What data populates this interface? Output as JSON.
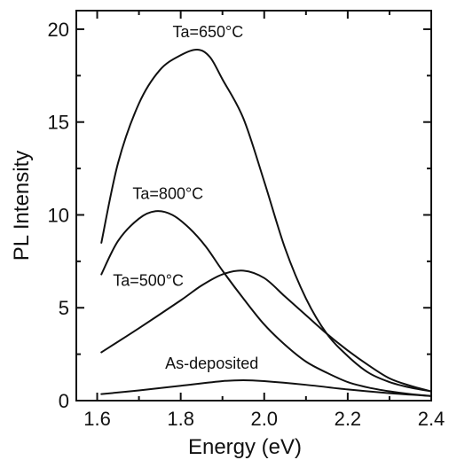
{
  "chart_data": {
    "type": "line",
    "xlabel": "Energy (eV)",
    "ylabel": "PL Intensity",
    "xlim": [
      1.55,
      2.4
    ],
    "ylim": [
      0,
      21
    ],
    "xticks": [
      1.6,
      1.8,
      2.0,
      2.2,
      2.4
    ],
    "yticks": [
      0,
      5,
      10,
      15,
      20
    ],
    "xtick_labels": [
      "1.6",
      "1.8",
      "2.0",
      "2.2",
      "2.4"
    ],
    "ytick_labels": [
      "0",
      "5",
      "10",
      "15",
      "20"
    ],
    "series": [
      {
        "name": "Ta=650°C",
        "color": "#111111",
        "x": [
          1.61,
          1.65,
          1.7,
          1.75,
          1.8,
          1.84,
          1.87,
          1.9,
          1.95,
          2.0,
          2.05,
          2.1,
          2.15,
          2.2,
          2.25,
          2.3,
          2.35,
          2.4
        ],
        "y": [
          8.5,
          12.8,
          16.0,
          17.8,
          18.6,
          18.9,
          18.5,
          17.3,
          15.2,
          11.8,
          8.2,
          5.5,
          3.6,
          2.4,
          1.5,
          1.0,
          0.7,
          0.5
        ]
      },
      {
        "name": "Ta=800°C",
        "color": "#111111",
        "x": [
          1.61,
          1.65,
          1.7,
          1.74,
          1.78,
          1.82,
          1.86,
          1.9,
          1.95,
          2.0,
          2.05,
          2.1,
          2.15,
          2.2,
          2.25,
          2.3,
          2.35,
          2.4
        ],
        "y": [
          6.8,
          8.6,
          9.8,
          10.2,
          10.0,
          9.3,
          8.3,
          7.0,
          5.5,
          4.1,
          3.0,
          2.1,
          1.5,
          1.0,
          0.7,
          0.5,
          0.35,
          0.25
        ]
      },
      {
        "name": "Ta=500°C",
        "color": "#111111",
        "x": [
          1.61,
          1.7,
          1.8,
          1.85,
          1.9,
          1.95,
          2.0,
          2.05,
          2.1,
          2.15,
          2.2,
          2.25,
          2.3,
          2.35,
          2.4
        ],
        "y": [
          2.6,
          3.9,
          5.4,
          6.2,
          6.8,
          7.0,
          6.6,
          5.6,
          4.6,
          3.6,
          2.7,
          1.9,
          1.2,
          0.8,
          0.5
        ]
      },
      {
        "name": "As-deposited",
        "color": "#111111",
        "x": [
          1.61,
          1.7,
          1.8,
          1.9,
          1.95,
          2.0,
          2.1,
          2.2,
          2.3,
          2.4
        ],
        "y": [
          0.35,
          0.55,
          0.8,
          1.05,
          1.1,
          1.05,
          0.85,
          0.6,
          0.4,
          0.25
        ]
      }
    ]
  }
}
